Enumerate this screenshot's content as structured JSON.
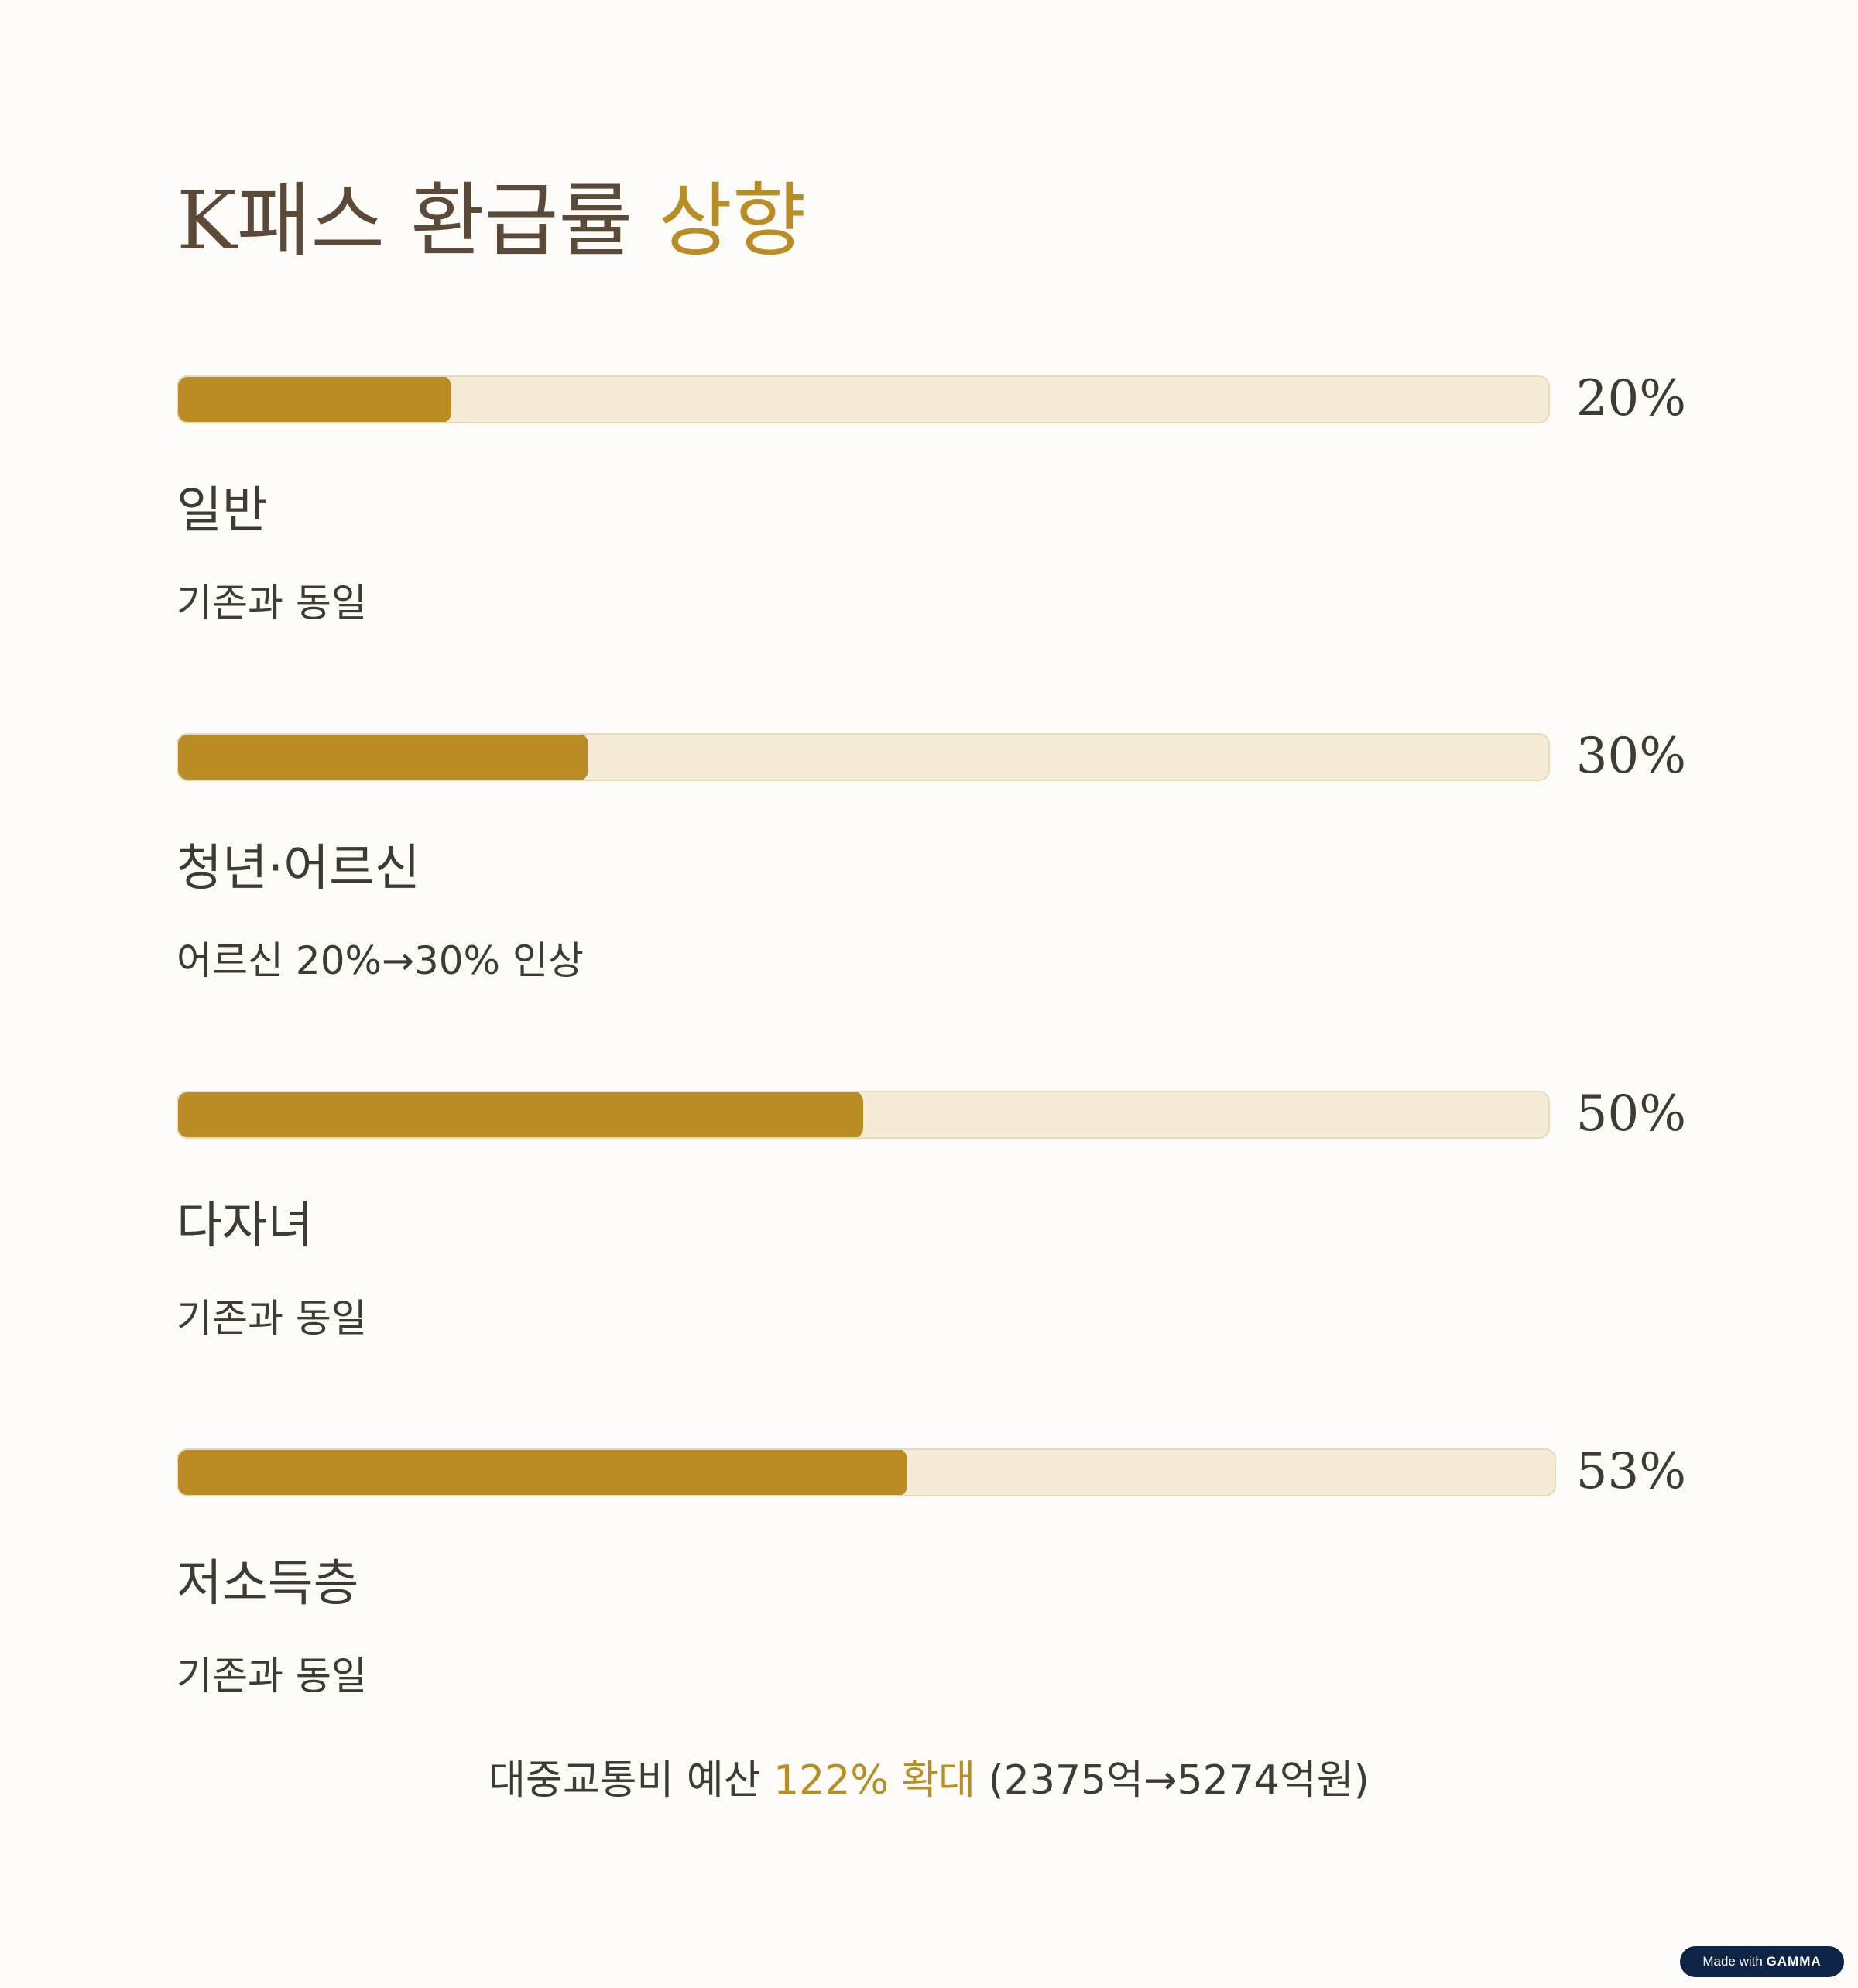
{
  "title": {
    "main": "K패스 환급률 ",
    "accent": "상향"
  },
  "items": [
    {
      "percent_label": "20%",
      "value": 20,
      "label": "일반",
      "description": "기존과 동일"
    },
    {
      "percent_label": "30%",
      "value": 30,
      "label": "청년·어르신",
      "description": "어르신 20%→30% 인상"
    },
    {
      "percent_label": "50%",
      "value": 50,
      "label": "다자녀",
      "description": "기존과 동일"
    },
    {
      "percent_label": "53%",
      "value": 53,
      "label": "저소득층",
      "description": "기존과 동일"
    }
  ],
  "footer": {
    "prefix": "대중교통비 예산 ",
    "accent": "122% 확대",
    "suffix": " (2375억→5274억원)"
  },
  "badge": {
    "made_with": "Made with ",
    "brand": "GAMMA"
  },
  "colors": {
    "accent": "#B98D24",
    "track": "#F6EBD6",
    "background": "#FDFCF8",
    "badge": "#0E2446"
  }
}
